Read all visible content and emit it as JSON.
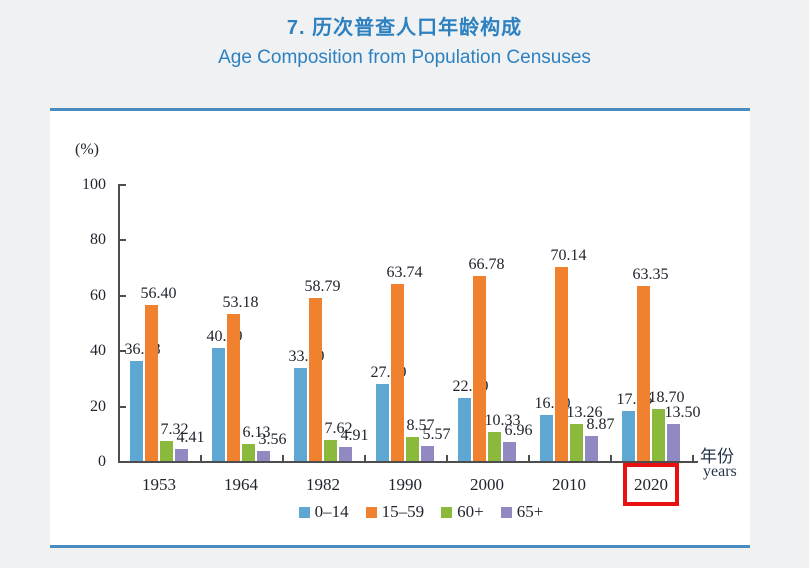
{
  "page": {
    "title_zh": "7. 历次普查人口年龄构成",
    "title_en": "Age Composition from Population Censuses",
    "accent_color": "#2e81c0",
    "rule_color": "#4a8cbf"
  },
  "chart_data": {
    "type": "bar",
    "title": "7. 历次普查人口年龄构成",
    "subtitle": "Age Composition from Population Censuses",
    "ylabel": "(%)",
    "xlabel_zh": "年份",
    "xlabel_en": "years",
    "ylim": [
      0,
      100
    ],
    "yticks": [
      0,
      20,
      40,
      60,
      80,
      100
    ],
    "grid": false,
    "legend_position": "bottom",
    "categories": [
      "1953",
      "1964",
      "1982",
      "1990",
      "2000",
      "2010",
      "2020"
    ],
    "series": [
      {
        "name": "0–14",
        "color": "#5ea7d3",
        "values": [
          36.28,
          40.69,
          33.59,
          27.69,
          22.89,
          16.6,
          17.95
        ]
      },
      {
        "name": "15–59",
        "color": "#f0812f",
        "values": [
          56.4,
          53.18,
          58.79,
          63.74,
          66.78,
          70.14,
          63.35
        ]
      },
      {
        "name": "60+",
        "color": "#8bb93c",
        "values": [
          7.32,
          6.13,
          7.62,
          8.57,
          10.33,
          13.26,
          18.7
        ]
      },
      {
        "name": "65+",
        "color": "#9189c1",
        "values": [
          4.41,
          3.56,
          4.91,
          5.57,
          6.96,
          8.87,
          13.5
        ]
      }
    ],
    "highlight": {
      "category": "2020",
      "box_color": "#e81010"
    }
  }
}
